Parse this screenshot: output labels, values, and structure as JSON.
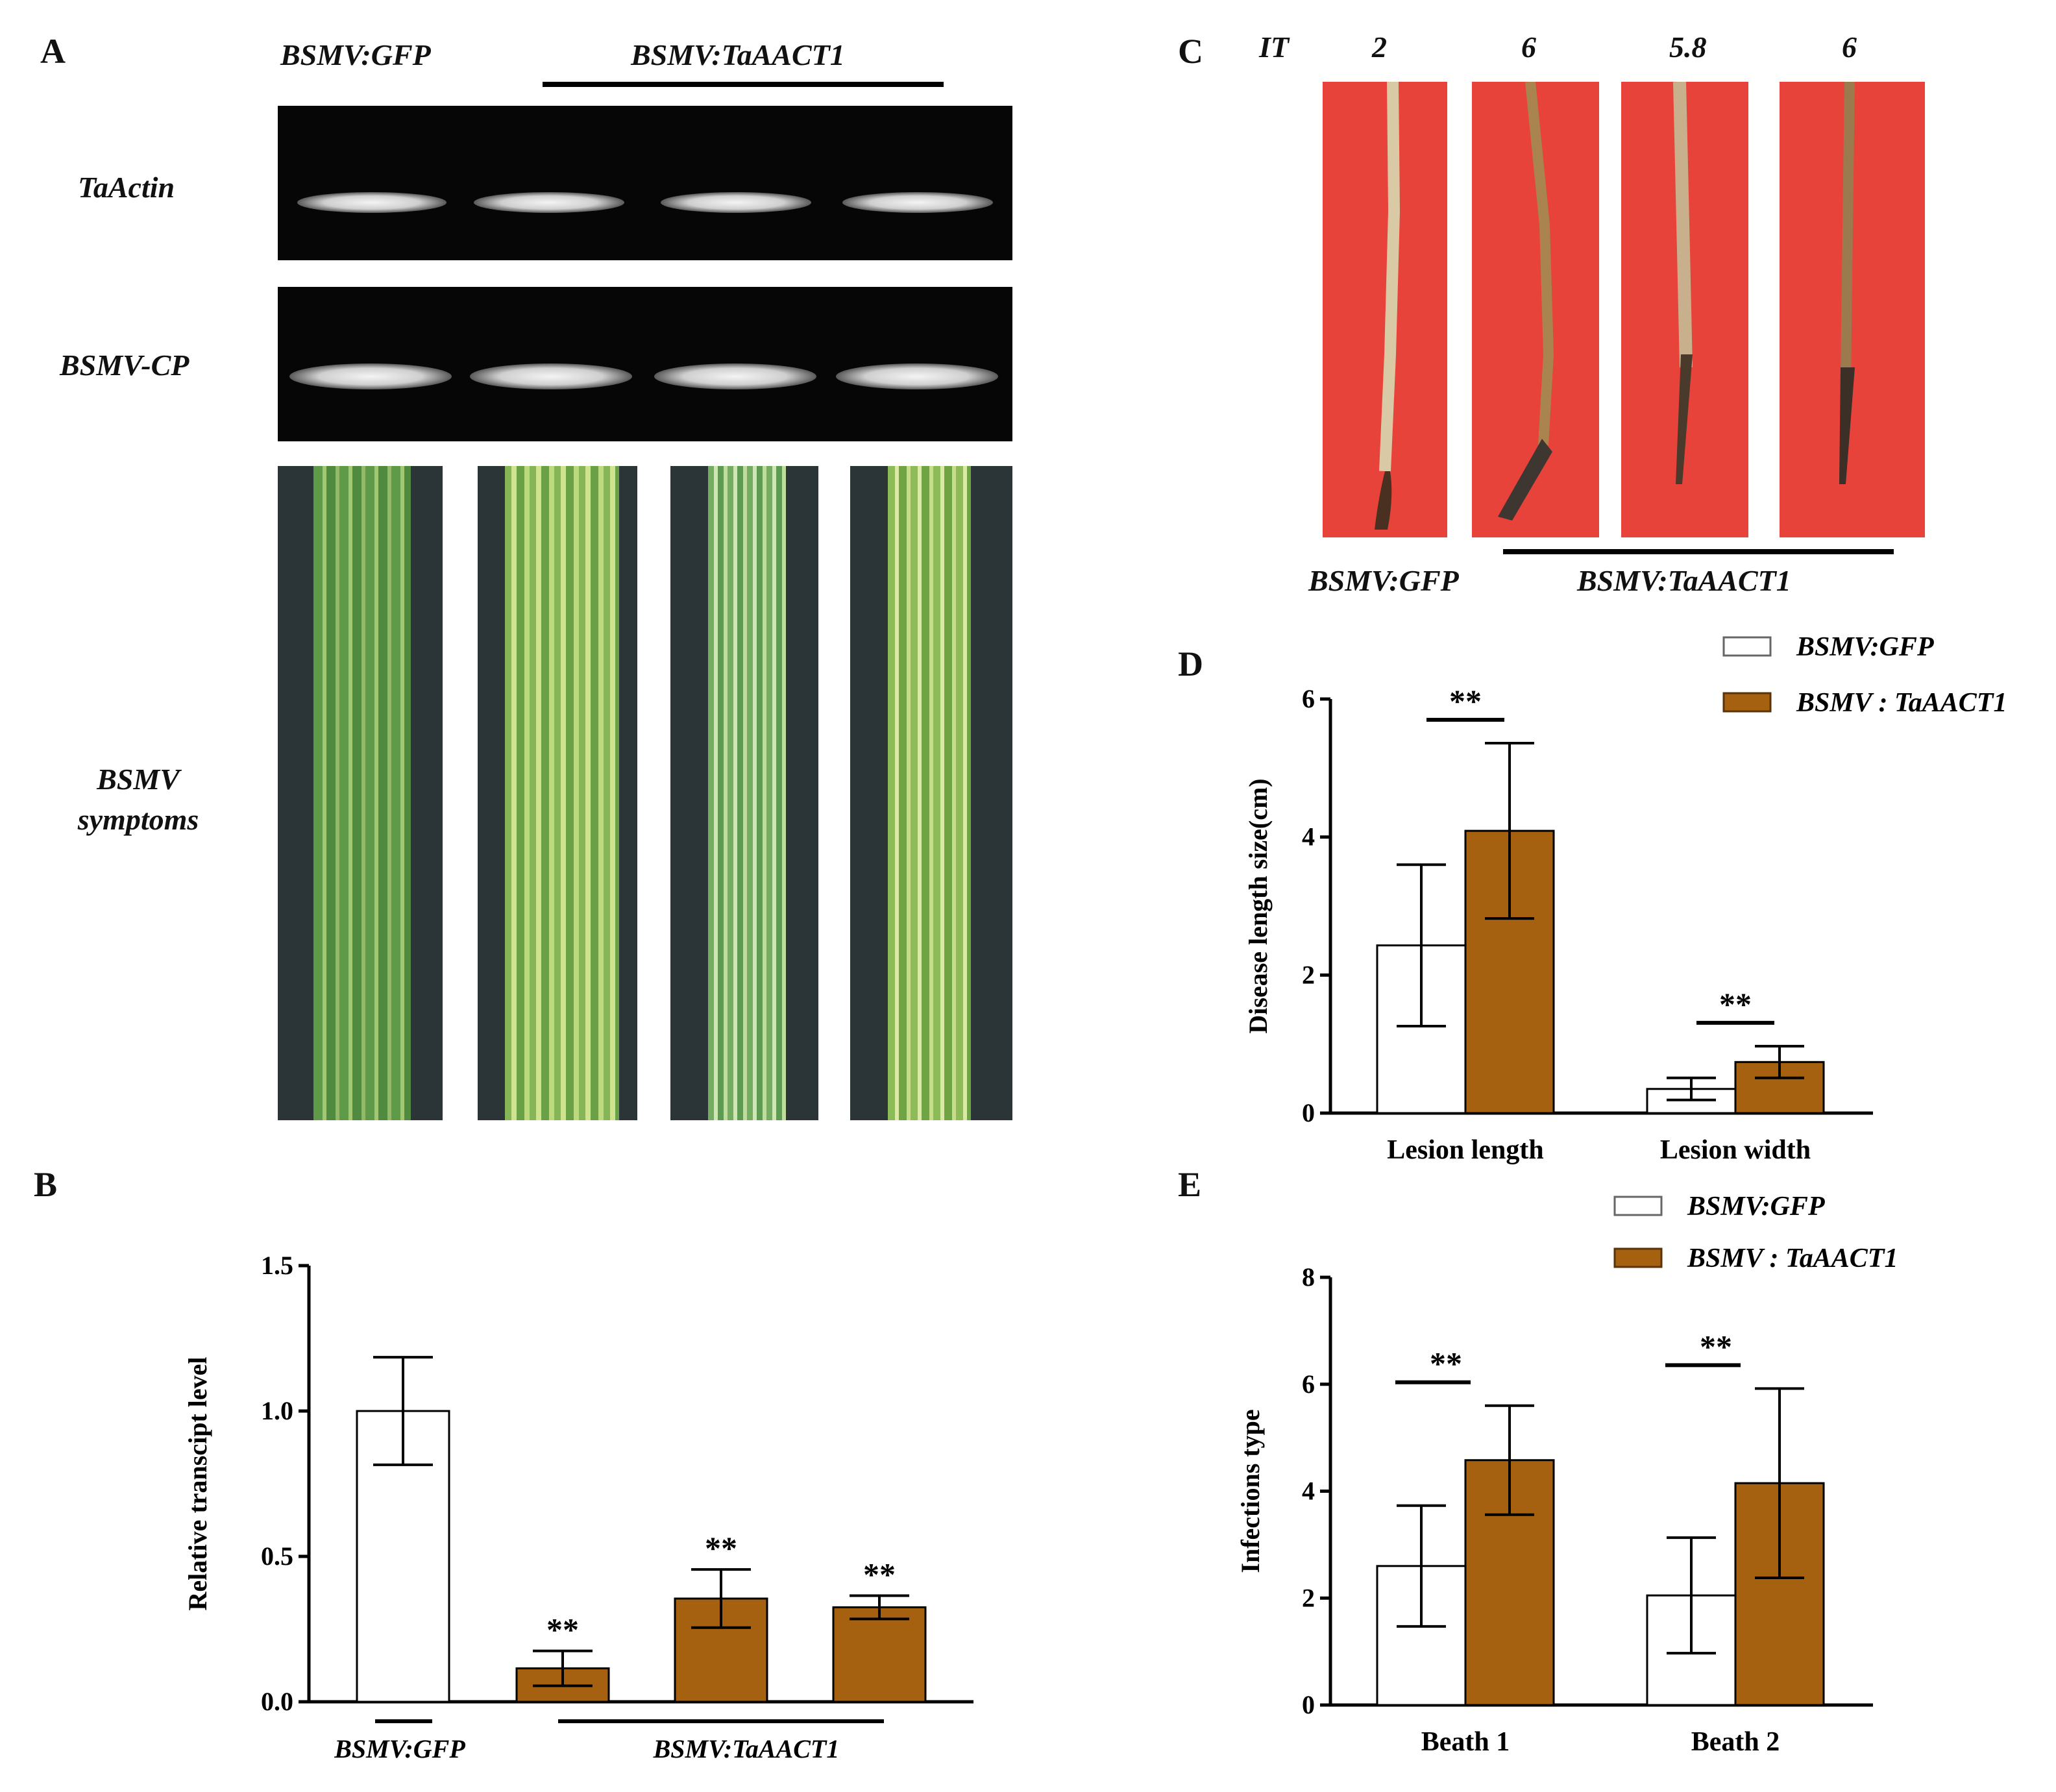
{
  "panel_a": {
    "label": "A",
    "header_gfp": "BSMV:GFP",
    "header_aact": "BSMV:TaAACT1",
    "row_actin": "TaActin",
    "row_cp": "BSMV-CP",
    "row_symptoms_1": "BSMV",
    "row_symptoms_2": "symptoms"
  },
  "panel_c": {
    "label": "C",
    "it_label": "IT",
    "it_values": [
      "2",
      "6",
      "5.8",
      "6"
    ],
    "footer_gfp": "BSMV:GFP",
    "footer_aact": "BSMV:TaAACT1"
  },
  "colors": {
    "control_fill": "#ffffff",
    "treatment_fill": "#a5610f",
    "stroke": "#000000",
    "stem_background": "#e8433a"
  },
  "chart_data": [
    {
      "panel": "B",
      "type": "bar",
      "title": "",
      "ylabel": "Relative transcipt level",
      "xlabel": "",
      "ylim": [
        0,
        1.5
      ],
      "yticks": [
        0,
        0.5,
        1,
        1.5
      ],
      "ytick_labels": [
        "0.0",
        "0.5",
        "1.0",
        "1.5"
      ],
      "group_labels": [
        "BSMV:GFP",
        "BSMV:TaAACT1"
      ],
      "bars": [
        {
          "group": "BSMV:GFP",
          "value": 1.0,
          "error": 0.185,
          "sig": ""
        },
        {
          "group": "BSMV:TaAACT1",
          "value": 0.115,
          "error": 0.06,
          "sig": "**"
        },
        {
          "group": "BSMV:TaAACT1",
          "value": 0.355,
          "error": 0.1,
          "sig": "**"
        },
        {
          "group": "BSMV:TaAACT1",
          "value": 0.325,
          "error": 0.04,
          "sig": "**"
        }
      ]
    },
    {
      "panel": "D",
      "type": "bar",
      "title": "",
      "ylabel": "Disease length size(cm)",
      "xlabel": "",
      "ylim": [
        0,
        6
      ],
      "yticks": [
        0,
        2,
        4,
        6
      ],
      "ytick_labels": [
        "0",
        "2",
        "4",
        "6"
      ],
      "categories": [
        "Lesion length",
        "Lesion width"
      ],
      "legend_position": "top-right",
      "series": [
        {
          "name": "BSMV:GFP",
          "values": [
            2.43,
            0.35
          ],
          "errors": [
            1.17,
            0.16
          ]
        },
        {
          "name": "BSMV : TaAACT1",
          "values": [
            4.09,
            0.74
          ],
          "errors": [
            1.27,
            0.23
          ]
        }
      ],
      "significance": [
        "**",
        "**"
      ]
    },
    {
      "panel": "E",
      "type": "bar",
      "title": "",
      "ylabel": "Infections type",
      "xlabel": "",
      "ylim": [
        0,
        8
      ],
      "yticks": [
        0,
        2,
        4,
        6,
        8
      ],
      "ytick_labels": [
        "0",
        "2",
        "4",
        "6",
        "8"
      ],
      "categories": [
        "Beath 1",
        "Beath 2"
      ],
      "legend_position": "top-right",
      "series": [
        {
          "name": "BSMV:GFP",
          "values": [
            2.6,
            2.05
          ],
          "errors": [
            1.13,
            1.08
          ]
        },
        {
          "name": "BSMV : TaAACT1",
          "values": [
            4.58,
            4.15
          ],
          "errors": [
            1.02,
            1.77
          ]
        }
      ],
      "significance": [
        "**",
        "**"
      ]
    }
  ]
}
